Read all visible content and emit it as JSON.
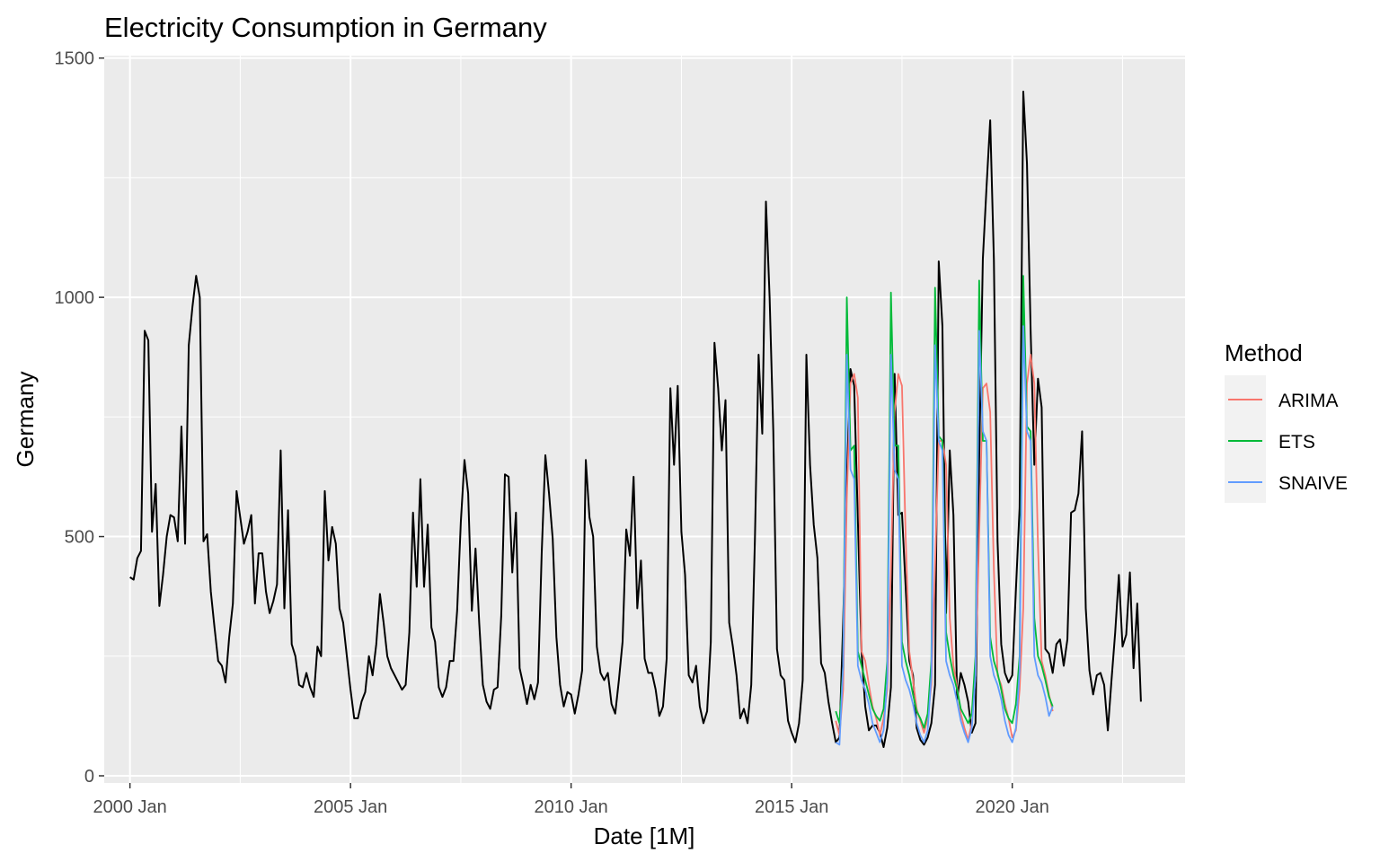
{
  "chart_data": {
    "type": "line",
    "title": "Electricity Consumption in Germany",
    "xlabel": "Date [1M]",
    "ylabel": "Germany",
    "ylim": [
      -15,
      1505
    ],
    "yticks": [
      0,
      500,
      1000,
      1500
    ],
    "xlim": [
      "1999-06",
      "2023-12"
    ],
    "xticks": [
      {
        "date": "2000-01",
        "label": "2000 Jan"
      },
      {
        "date": "2005-01",
        "label": "2005 Jan"
      },
      {
        "date": "2010-01",
        "label": "2010 Jan"
      },
      {
        "date": "2015-01",
        "label": "2015 Jan"
      },
      {
        "date": "2020-01",
        "label": "2020 Jan"
      }
    ],
    "grid": true,
    "legend_position": "right",
    "legend_title": "Method",
    "colors": {
      "panel_bg": "#ebebeb",
      "grid": "#ffffff",
      "actual": "#000000",
      "ARIMA": "#f8766d",
      "ETS": "#00ba38",
      "SNAIVE": "#619cff"
    },
    "actual": {
      "start": "2000-01",
      "values": [
        415,
        410,
        455,
        470,
        930,
        910,
        510,
        610,
        355,
        420,
        500,
        545,
        540,
        490,
        730,
        485,
        900,
        980,
        1045,
        1000,
        490,
        505,
        385,
        310,
        240,
        230,
        195,
        290,
        360,
        595,
        540,
        485,
        510,
        545,
        360,
        465,
        465,
        385,
        340,
        365,
        400,
        680,
        350,
        555,
        275,
        250,
        190,
        185,
        215,
        185,
        165,
        270,
        250,
        595,
        450,
        520,
        485,
        350,
        320,
        250,
        180,
        120,
        120,
        155,
        175,
        250,
        210,
        275,
        380,
        320,
        250,
        225,
        210,
        195,
        180,
        190,
        300,
        550,
        395,
        620,
        395,
        525,
        310,
        280,
        185,
        165,
        185,
        240,
        240,
        345,
        530,
        660,
        590,
        345,
        475,
        320,
        190,
        155,
        140,
        180,
        185,
        335,
        630,
        625,
        425,
        550,
        225,
        190,
        150,
        190,
        160,
        195,
        465,
        670,
        590,
        495,
        290,
        190,
        145,
        175,
        170,
        130,
        170,
        220,
        660,
        540,
        500,
        270,
        215,
        200,
        215,
        150,
        130,
        200,
        280,
        515,
        460,
        625,
        350,
        450,
        245,
        215,
        215,
        180,
        125,
        145,
        245,
        810,
        650,
        815,
        510,
        420,
        210,
        195,
        230,
        145,
        110,
        135,
        280,
        905,
        810,
        680,
        785,
        320,
        270,
        210,
        120,
        140,
        110,
        190,
        495,
        880,
        715,
        1200,
        1000,
        720,
        265,
        210,
        200,
        115,
        90,
        70,
        110,
        200,
        880,
        650,
        525,
        455,
        235,
        215,
        155,
        110,
        70,
        80,
        320,
        620,
        850,
        815,
        535,
        260,
        145,
        95,
        105,
        105,
        90,
        60,
        100,
        185,
        840,
        545,
        550,
        395,
        240,
        210,
        100,
        75,
        65,
        80,
        110,
        190,
        1075,
        940,
        340,
        680,
        545,
        160,
        215,
        190,
        155,
        90,
        110,
        660,
        1080,
        1230,
        1370,
        1080,
        490,
        275,
        215,
        195,
        210,
        390,
        560,
        1430,
        1280,
        930,
        650,
        830,
        770,
        265,
        255,
        215,
        275,
        285,
        230,
        285,
        550,
        555,
        590,
        720,
        350,
        220,
        170,
        210,
        215,
        190,
        95,
        200,
        300,
        420,
        270,
        295,
        425,
        225,
        360,
        155
      ]
    },
    "forecasts": [
      {
        "name": "ARIMA",
        "start": "2016-01",
        "values": [
          115,
          85,
          180,
          580,
          820,
          840,
          790,
          260,
          240,
          190,
          145,
          120,
          85,
          120,
          180,
          430,
          760,
          840,
          815,
          500,
          260,
          200,
          140,
          115,
          90,
          120,
          190,
          440,
          700,
          700,
          650,
          330,
          230,
          185,
          130,
          100,
          75,
          110,
          210,
          500,
          810,
          820,
          760,
          430,
          210,
          190,
          150,
          120,
          80,
          95,
          180,
          350,
          820,
          880,
          820,
          480,
          240,
          210,
          170,
          135
        ]
      },
      {
        "name": "ETS",
        "start": "2016-01",
        "values": [
          135,
          110,
          230,
          1000,
          680,
          690,
          260,
          230,
          200,
          170,
          140,
          125,
          115,
          140,
          240,
          1010,
          690,
          690,
          280,
          240,
          210,
          170,
          135,
          120,
          100,
          130,
          240,
          1020,
          710,
          700,
          300,
          250,
          210,
          180,
          140,
          125,
          110,
          130,
          250,
          1035,
          700,
          700,
          290,
          240,
          215,
          180,
          140,
          120,
          110,
          150,
          250,
          1045,
          730,
          720,
          330,
          250,
          230,
          200,
          165,
          145
        ]
      },
      {
        "name": "SNAIVE",
        "start": "2016-01",
        "values": [
          70,
          65,
          230,
          880,
          640,
          620,
          230,
          200,
          180,
          150,
          110,
          90,
          70,
          95,
          200,
          880,
          640,
          620,
          230,
          200,
          180,
          150,
          110,
          85,
          70,
          95,
          210,
          900,
          700,
          680,
          240,
          210,
          190,
          155,
          115,
          90,
          70,
          100,
          210,
          930,
          720,
          700,
          250,
          210,
          190,
          160,
          115,
          85,
          70,
          100,
          220,
          940,
          720,
          700,
          250,
          210,
          195,
          165,
          125,
          145
        ]
      }
    ]
  }
}
